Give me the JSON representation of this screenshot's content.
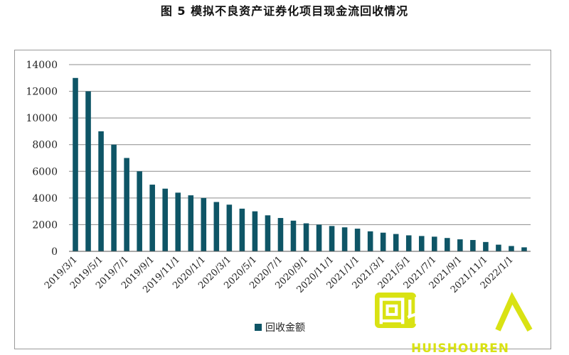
{
  "page": {
    "title": "图 5  模拟不良资产证券化项目现金流回收情况"
  },
  "chart_data": {
    "type": "bar",
    "title": "图 5  模拟不良资产证券化项目现金流回收情况",
    "xlabel": "",
    "ylabel": "",
    "ylim": [
      0,
      14000
    ],
    "yticks": [
      0,
      2000,
      4000,
      6000,
      8000,
      10000,
      12000,
      14000
    ],
    "grid": true,
    "legend_position": "bottom",
    "categories": [
      "2019/3/1",
      "2019/4/1",
      "2019/5/1",
      "2019/6/1",
      "2019/7/1",
      "2019/8/1",
      "2019/9/1",
      "2019/10/1",
      "2019/11/1",
      "2019/12/1",
      "2020/1/1",
      "2020/2/1",
      "2020/3/1",
      "2020/4/1",
      "2020/5/1",
      "2020/6/1",
      "2020/7/1",
      "2020/8/1",
      "2020/9/1",
      "2020/10/1",
      "2020/11/1",
      "2020/12/1",
      "2021/1/1",
      "2021/2/1",
      "2021/3/1",
      "2021/4/1",
      "2021/5/1",
      "2021/6/1",
      "2021/7/1",
      "2021/8/1",
      "2021/9/1",
      "2021/10/1",
      "2021/11/1",
      "2021/12/1",
      "2022/1/1",
      "2022/2/1"
    ],
    "tick_labels": [
      "2019/3/1",
      "2019/5/1",
      "2019/7/1",
      "2019/9/1",
      "2019/11/1",
      "2020/1/1",
      "2020/3/1",
      "2020/5/1",
      "2020/7/1",
      "2020/9/1",
      "2020/11/1",
      "2021/1/1",
      "2021/3/1",
      "2021/5/1",
      "2021/7/1",
      "2021/9/1",
      "2021/11/1",
      "2022/1/1"
    ],
    "series": [
      {
        "name": "回收金额",
        "color": "#0e5566",
        "values": [
          13000,
          12000,
          9000,
          8000,
          7000,
          6000,
          5000,
          4700,
          4400,
          4200,
          4000,
          3700,
          3500,
          3200,
          3000,
          2700,
          2500,
          2300,
          2100,
          2000,
          1900,
          1800,
          1700,
          1500,
          1400,
          1300,
          1200,
          1150,
          1100,
          1000,
          900,
          850,
          700,
          500,
          400,
          300
        ]
      }
    ]
  },
  "watermark": {
    "text": "回收",
    "subtext": "HUISHOUREN",
    "color": "#d6e000"
  }
}
